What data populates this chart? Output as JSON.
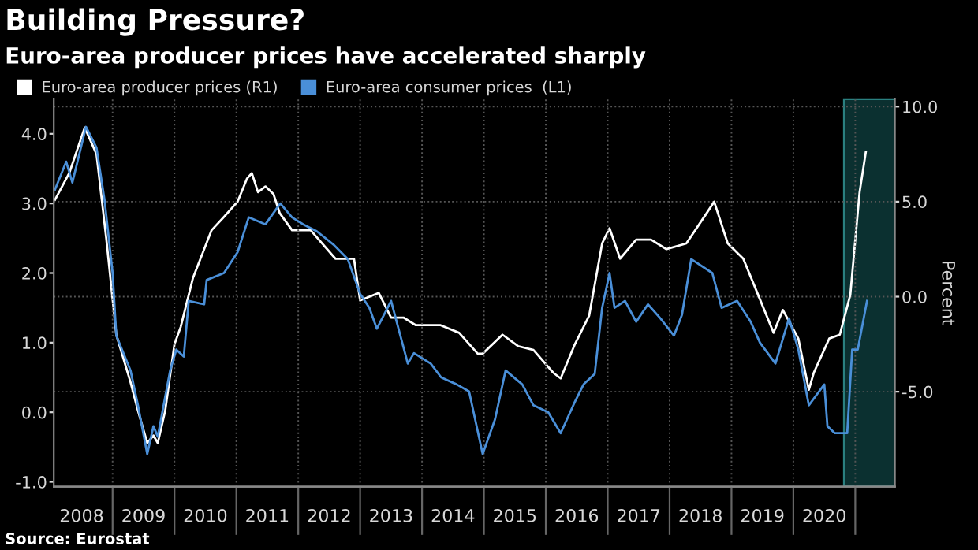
{
  "chart_data": {
    "type": "line",
    "title": "Building Pressure?",
    "subtitle": "Euro-area producer prices have accelerated sharply",
    "y2label": "Percent",
    "annotations": [
      "Source: Eurostat"
    ],
    "legend": "top left",
    "grid": true,
    "marker": "none",
    "line_style": "solid",
    "xlim": [
      2008.05,
      2021.64
    ],
    "xticks": [
      {
        "value": 2009,
        "label": null
      },
      {
        "value": 2010,
        "label": null
      },
      {
        "value": 2011,
        "label": null
      },
      {
        "value": 2012,
        "label": null
      },
      {
        "value": 2013,
        "label": null
      },
      {
        "value": 2014,
        "label": null
      },
      {
        "value": 2015,
        "label": null
      },
      {
        "value": 2016,
        "label": null
      },
      {
        "value": 2017,
        "label": null
      },
      {
        "value": 2018,
        "label": null
      },
      {
        "value": 2019,
        "label": null
      },
      {
        "value": 2020,
        "label": null
      },
      {
        "value": 2021,
        "label": null
      },
      {
        "value": 2008.5,
        "label": "2008"
      },
      {
        "value": 2009.5,
        "label": "2009"
      },
      {
        "value": 2010.5,
        "label": "2010"
      },
      {
        "value": 2011.5,
        "label": "2011"
      },
      {
        "value": 2012.5,
        "label": "2012"
      },
      {
        "value": 2013.5,
        "label": "2013"
      },
      {
        "value": 2014.5,
        "label": "2014"
      },
      {
        "value": 2015.5,
        "label": "2015"
      },
      {
        "value": 2016.5,
        "label": "2016"
      },
      {
        "value": 2017.5,
        "label": "2017"
      },
      {
        "value": 2018.5,
        "label": "2018"
      },
      {
        "value": 2019.5,
        "label": "2019"
      },
      {
        "value": 2020.5,
        "label": "2020"
      }
    ],
    "ylim": [
      -1.07,
      4.5
    ],
    "yticks": [
      {
        "value": -1,
        "label": "-1.0"
      },
      {
        "value": 0,
        "label": "0.0"
      },
      {
        "value": 1,
        "label": "1.0"
      },
      {
        "value": 2,
        "label": "2.0"
      },
      {
        "value": 3,
        "label": "3.0"
      },
      {
        "value": 4,
        "label": "4.0"
      }
    ],
    "y2lim": [
      -10,
      10.4
    ],
    "y2ticks": [
      {
        "value": -5,
        "label": "-5.0"
      },
      {
        "value": 0,
        "label": "0.0"
      },
      {
        "value": 5,
        "label": "5.0"
      },
      {
        "value": 10,
        "label": "10.0"
      }
    ],
    "bands": [
      {
        "axis": "x",
        "from": 2020.82,
        "to": 2021.64,
        "color": "#0b3030"
      }
    ],
    "series": [
      {
        "name": "Euro-area producer prices (R1)",
        "color": "#ffffff",
        "axis": "y2",
        "x": [
          2008.07,
          2008.3,
          2008.55,
          2008.74,
          2008.9,
          2009.06,
          2009.29,
          2009.41,
          2009.56,
          2009.66,
          2009.73,
          2009.85,
          2010.0,
          2010.1,
          2010.3,
          2010.6,
          2010.8,
          2011.02,
          2011.17,
          2011.25,
          2011.35,
          2011.47,
          2011.6,
          2011.7,
          2011.9,
          2012.2,
          2012.6,
          2012.9,
          2013.0,
          2013.3,
          2013.5,
          2013.7,
          2013.9,
          2014.3,
          2014.6,
          2014.9,
          2014.98,
          2015.3,
          2015.55,
          2015.8,
          2016.12,
          2016.24,
          2016.47,
          2016.7,
          2016.91,
          2017.03,
          2017.2,
          2017.46,
          2017.7,
          2017.95,
          2018.27,
          2018.6,
          2018.72,
          2018.94,
          2019.19,
          2019.43,
          2019.68,
          2019.83,
          2020.08,
          2020.25,
          2020.33,
          2020.58,
          2020.75,
          2020.92,
          2021.07,
          2021.17
        ],
        "values": [
          5.1,
          6.5,
          8.9,
          7.5,
          3.0,
          -2.0,
          -4.5,
          -6.0,
          -7.7,
          -7.3,
          -7.7,
          -6.0,
          -2.5,
          -1.6,
          1.0,
          3.5,
          4.2,
          5.0,
          6.2,
          6.5,
          5.5,
          5.8,
          5.4,
          4.4,
          3.5,
          3.5,
          2.0,
          2.0,
          -0.2,
          0.2,
          -1.1,
          -1.1,
          -1.5,
          -1.5,
          -1.9,
          -3.0,
          -3.0,
          -2.0,
          -2.6,
          -2.8,
          -4.0,
          -4.3,
          -2.5,
          -1.0,
          2.8,
          3.6,
          2.0,
          3.0,
          3.0,
          2.5,
          2.8,
          4.4,
          5.0,
          2.8,
          2.0,
          0.1,
          -1.9,
          -0.7,
          -2.2,
          -4.9,
          -4.0,
          -2.2,
          -2.0,
          0.1,
          5.5,
          7.6
        ]
      },
      {
        "name": "Euro-area consumer prices  (L1)",
        "color": "#4a8fd8",
        "x": [
          2008.07,
          2008.25,
          2008.35,
          2008.57,
          2008.74,
          2008.87,
          2009.0,
          2009.06,
          2009.29,
          2009.41,
          2009.56,
          2009.66,
          2009.73,
          2009.93,
          2010.03,
          2010.15,
          2010.23,
          2010.48,
          2010.52,
          2010.8,
          2011.02,
          2011.2,
          2011.47,
          2011.71,
          2011.9,
          2012.08,
          2012.3,
          2012.58,
          2012.8,
          2013.0,
          2013.15,
          2013.27,
          2013.5,
          2013.77,
          2013.87,
          2014.14,
          2014.31,
          2014.56,
          2014.76,
          2014.98,
          2015.18,
          2015.35,
          2015.62,
          2015.8,
          2016.04,
          2016.24,
          2016.47,
          2016.61,
          2016.79,
          2016.91,
          2017.03,
          2017.11,
          2017.28,
          2017.46,
          2017.65,
          2017.85,
          2018.07,
          2018.2,
          2018.35,
          2018.69,
          2018.84,
          2019.09,
          2019.31,
          2019.46,
          2019.71,
          2019.93,
          2020.08,
          2020.25,
          2020.5,
          2020.55,
          2020.67,
          2020.87,
          2020.95,
          2021.04,
          2021.19
        ],
        "values": [
          3.2,
          3.6,
          3.3,
          4.1,
          3.8,
          3.05,
          2.0,
          1.1,
          0.6,
          0.1,
          -0.6,
          -0.2,
          -0.35,
          0.6,
          0.9,
          0.8,
          1.6,
          1.55,
          1.9,
          2.0,
          2.3,
          2.8,
          2.7,
          3.0,
          2.8,
          2.7,
          2.6,
          2.4,
          2.2,
          1.7,
          1.5,
          1.2,
          1.6,
          0.7,
          0.85,
          0.7,
          0.5,
          0.4,
          0.3,
          -0.6,
          -0.1,
          0.6,
          0.4,
          0.1,
          0.0,
          -0.3,
          0.15,
          0.4,
          0.55,
          1.5,
          2.0,
          1.5,
          1.6,
          1.3,
          1.55,
          1.35,
          1.1,
          1.4,
          2.2,
          2.0,
          1.5,
          1.6,
          1.3,
          1.0,
          0.7,
          1.35,
          0.9,
          0.1,
          0.4,
          -0.2,
          -0.3,
          -0.3,
          0.9,
          0.9,
          1.6
        ]
      }
    ]
  }
}
